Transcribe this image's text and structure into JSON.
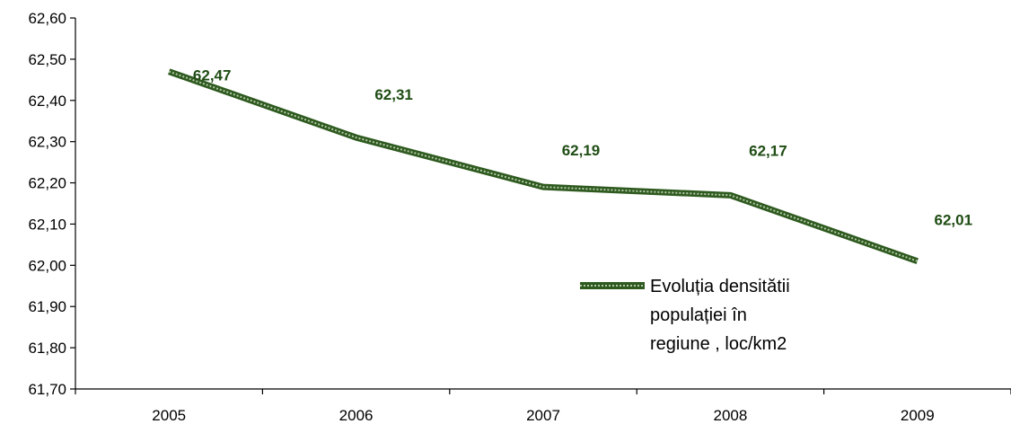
{
  "chart_data": {
    "type": "line",
    "categories": [
      "2005",
      "2006",
      "2007",
      "2008",
      "2009"
    ],
    "series": [
      {
        "name": "Evoluția densitătii populației în regiune , loc/km2",
        "values": [
          62.47,
          62.31,
          62.19,
          62.17,
          62.01
        ],
        "value_labels": [
          "62,47",
          "62,31",
          "62,19",
          "62,17",
          "62,01"
        ]
      }
    ],
    "ylim": [
      61.7,
      62.6
    ],
    "yticks": [
      "62,60",
      "62,50",
      "62,40",
      "62,30",
      "62,20",
      "62,10",
      "62,00",
      "61,90",
      "61,80",
      "61,70"
    ],
    "legend": {
      "position": "inside-lower-right",
      "lines": [
        "Evoluția densitătii",
        "populației în",
        "regiune , loc/km2"
      ]
    },
    "grid": false,
    "colors": {
      "line": "#2e5a1f",
      "line_dots": "#b4c8a8",
      "data_label": "#1f4d14"
    }
  }
}
